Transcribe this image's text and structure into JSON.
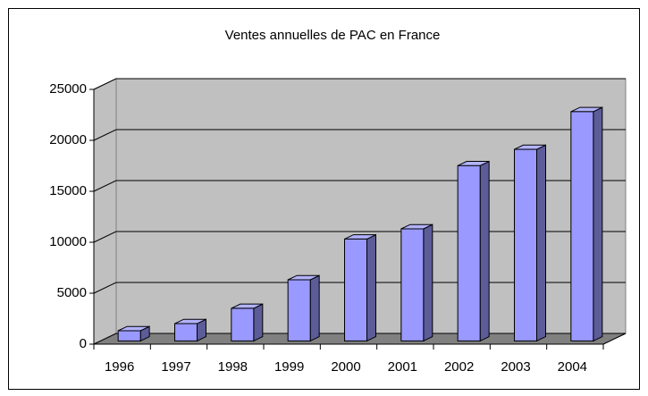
{
  "chart_data": {
    "type": "bar3d",
    "title": "Ventes annuelles de PAC en France",
    "categories": [
      "1996",
      "1997",
      "1998",
      "1999",
      "2000",
      "2001",
      "2002",
      "2003",
      "2004"
    ],
    "values": [
      1000,
      1700,
      3200,
      6000,
      10000,
      11000,
      17200,
      18800,
      22500
    ],
    "color": "#9999ff",
    "ylim": [
      0,
      25000
    ],
    "yticks": [
      0,
      5000,
      10000,
      15000,
      20000,
      25000
    ],
    "grid": true
  }
}
